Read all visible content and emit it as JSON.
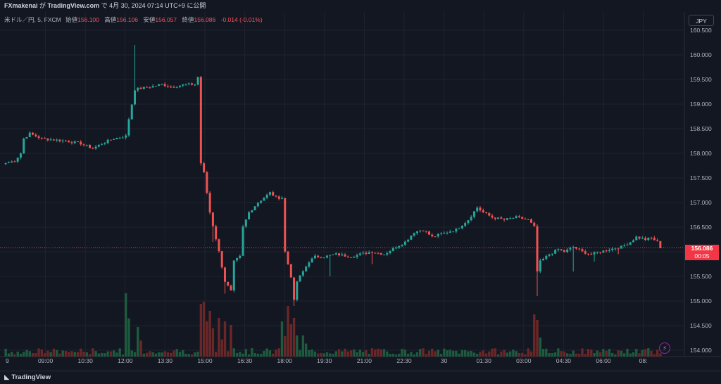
{
  "publish": {
    "author": "FXmakenai",
    "mid": " が ",
    "site": "TradingView.com",
    "rest": " で 4月 30, 2024 07:14 UTC+9 に公開"
  },
  "symbol": {
    "name": "米ドル／円, 5, FXCM",
    "o_label": "始値",
    "o": "156.100",
    "h_label": "高値",
    "h": "156.106",
    "l_label": "安値",
    "l": "156.057",
    "c_label": "終値",
    "c": "156.086",
    "chg": "-0.014 (-0.01%)"
  },
  "currency_button": "JPY",
  "last_price": {
    "price": "156.086",
    "countdown": "00:05"
  },
  "footer": {
    "brand": "TradingView"
  },
  "colors": {
    "up": "#26a69a",
    "down": "#ef5350",
    "bg": "#131722",
    "grid": "#1f2330",
    "axis_text": "#b2b5be",
    "price_line": "#f23645",
    "vol_up": "#1d5b3e",
    "vol_down": "#6b2727"
  },
  "chart_data": {
    "type": "candlestick",
    "timeframe": "5",
    "y_axis": {
      "ylim": [
        153.9,
        160.7
      ],
      "ticks": [
        "154.000",
        "154.500",
        "155.000",
        "155.500",
        "156.000",
        "156.500",
        "157.000",
        "157.500",
        "158.000",
        "158.500",
        "159.000",
        "159.500",
        "160.000",
        "160.500"
      ]
    },
    "x_axis": {
      "ticks": [
        "9",
        "09:00",
        "10:30",
        "12:00",
        "13:30",
        "15:00",
        "16:30",
        "18:00",
        "19:30",
        "21:00",
        "22:30",
        "30",
        "01:30",
        "03:00",
        "04:30",
        "06:00",
        "08:"
      ]
    },
    "keypoints": [
      [
        0,
        157.8
      ],
      [
        3,
        157.85
      ],
      [
        5,
        158.0
      ],
      [
        6,
        158.3
      ],
      [
        8,
        158.4
      ],
      [
        12,
        158.3
      ],
      [
        20,
        158.25
      ],
      [
        25,
        158.2
      ],
      [
        29,
        158.1
      ],
      [
        32,
        158.2
      ],
      [
        36,
        158.3
      ],
      [
        40,
        158.35
      ],
      [
        41,
        158.7
      ],
      [
        43,
        159.3
      ],
      [
        48,
        159.35
      ],
      [
        52,
        159.4
      ],
      [
        55,
        159.35
      ],
      [
        60,
        159.4
      ],
      [
        63,
        159.4
      ],
      [
        64,
        159.55
      ],
      [
        65,
        157.8
      ],
      [
        66,
        157.6
      ],
      [
        68,
        156.8
      ],
      [
        71,
        156.0
      ],
      [
        73,
        155.4
      ],
      [
        75,
        155.2
      ],
      [
        76,
        155.8
      ],
      [
        78,
        155.9
      ],
      [
        79,
        156.5
      ],
      [
        81,
        156.8
      ],
      [
        84,
        157.0
      ],
      [
        86,
        157.1
      ],
      [
        88,
        157.2
      ],
      [
        90,
        157.1
      ],
      [
        92,
        157.1
      ],
      [
        93,
        156.0
      ],
      [
        95,
        155.5
      ],
      [
        96,
        155.0
      ],
      [
        97,
        155.4
      ],
      [
        99,
        155.6
      ],
      [
        101,
        155.8
      ],
      [
        103,
        155.9
      ],
      [
        106,
        155.9
      ],
      [
        110,
        155.95
      ],
      [
        115,
        155.9
      ],
      [
        118,
        155.95
      ],
      [
        122,
        156.0
      ],
      [
        126,
        155.95
      ],
      [
        130,
        156.1
      ],
      [
        133,
        156.2
      ],
      [
        136,
        156.4
      ],
      [
        139,
        156.45
      ],
      [
        142,
        156.3
      ],
      [
        147,
        156.4
      ],
      [
        150,
        156.45
      ],
      [
        154,
        156.65
      ],
      [
        157,
        156.9
      ],
      [
        159,
        156.8
      ],
      [
        162,
        156.7
      ],
      [
        166,
        156.65
      ],
      [
        170,
        156.7
      ],
      [
        174,
        156.65
      ],
      [
        176,
        156.5
      ],
      [
        177,
        155.6
      ],
      [
        178,
        155.8
      ],
      [
        181,
        155.95
      ],
      [
        184,
        156.05
      ],
      [
        186,
        156.0
      ],
      [
        189,
        156.1
      ],
      [
        192,
        156.0
      ],
      [
        195,
        155.95
      ],
      [
        198,
        156.0
      ],
      [
        201,
        156.05
      ],
      [
        205,
        156.1
      ],
      [
        208,
        156.2
      ],
      [
        210,
        156.3
      ],
      [
        213,
        156.25
      ],
      [
        215,
        156.28
      ],
      [
        217,
        156.2
      ],
      [
        218,
        156.09
      ]
    ],
    "spikes": [
      [
        43,
        160.2
      ],
      [
        65,
        157.75
      ],
      [
        69,
        156.2
      ],
      [
        73,
        155.15
      ],
      [
        96,
        154.9
      ],
      [
        108,
        155.5
      ],
      [
        122,
        155.75
      ],
      [
        177,
        155.1
      ],
      [
        189,
        155.6
      ],
      [
        196,
        155.8
      ],
      [
        204,
        155.95
      ]
    ],
    "volume_peaks": [
      [
        40,
        0.9
      ],
      [
        44,
        0.42
      ],
      [
        65,
        0.75
      ],
      [
        66,
        0.78
      ],
      [
        68,
        0.65
      ],
      [
        71,
        0.55
      ],
      [
        73,
        0.5
      ],
      [
        75,
        0.45
      ],
      [
        92,
        0.5
      ],
      [
        94,
        0.72
      ],
      [
        96,
        0.55
      ],
      [
        99,
        0.3
      ],
      [
        176,
        0.6
      ],
      [
        177,
        0.52
      ]
    ],
    "last_price": 156.086
  }
}
